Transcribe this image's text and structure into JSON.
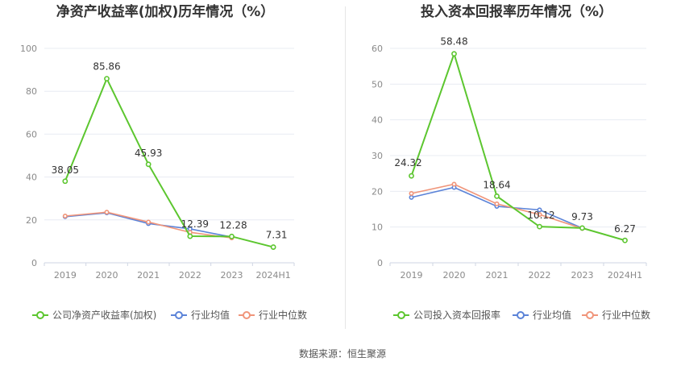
{
  "source_text": "数据来源：恒生聚源",
  "colors": {
    "company": "#5cc62f",
    "avg": "#5b83d8",
    "median": "#f0957a",
    "grid": "#e8ecf3",
    "axis_text": "#8a8a8a",
    "title": "#333333"
  },
  "chart_data": [
    {
      "type": "line",
      "title": "净资产收益率(加权)历年情况（%）",
      "xlabel": "",
      "ylabel": "",
      "categories": [
        "2019",
        "2020",
        "2021",
        "2022",
        "2023",
        "2024H1"
      ],
      "ylim": [
        0,
        100
      ],
      "yticks": [
        "0",
        "20",
        "40",
        "60",
        "80",
        "100"
      ],
      "grid": true,
      "legend_position": "bottom",
      "series": [
        {
          "name": "公司净资产收益率(加权)",
          "key": "company",
          "values": [
            38.05,
            85.86,
            45.93,
            12.39,
            12.28,
            7.31
          ],
          "labels": [
            "38.05",
            "85.86",
            "45.93",
            "12.39",
            "12.28",
            "7.31"
          ]
        },
        {
          "name": "行业均值",
          "key": "avg",
          "values": [
            21.5,
            23.3,
            18.3,
            15.8,
            12.0,
            null
          ]
        },
        {
          "name": "行业中位数",
          "key": "median",
          "values": [
            21.8,
            23.6,
            19.0,
            14.2,
            11.6,
            null
          ]
        }
      ]
    },
    {
      "type": "line",
      "title": "投入资本回报率历年情况（%）",
      "xlabel": "",
      "ylabel": "",
      "categories": [
        "2019",
        "2020",
        "2021",
        "2022",
        "2023",
        "2024H1"
      ],
      "ylim": [
        0,
        60
      ],
      "yticks": [
        "0",
        "10",
        "20",
        "30",
        "40",
        "50",
        "60"
      ],
      "grid": true,
      "legend_position": "bottom",
      "series": [
        {
          "name": "公司投入资本回报率",
          "key": "company",
          "values": [
            24.32,
            58.48,
            18.64,
            10.12,
            9.73,
            6.27
          ],
          "labels": [
            "24.32",
            "58.48",
            "18.64",
            "10.12",
            "9.73",
            "6.27"
          ]
        },
        {
          "name": "行业均值",
          "key": "avg",
          "values": [
            18.3,
            21.1,
            15.8,
            14.8,
            9.7,
            null
          ]
        },
        {
          "name": "行业中位数",
          "key": "median",
          "values": [
            19.4,
            22.0,
            16.5,
            13.5,
            9.6,
            null
          ]
        }
      ]
    }
  ]
}
